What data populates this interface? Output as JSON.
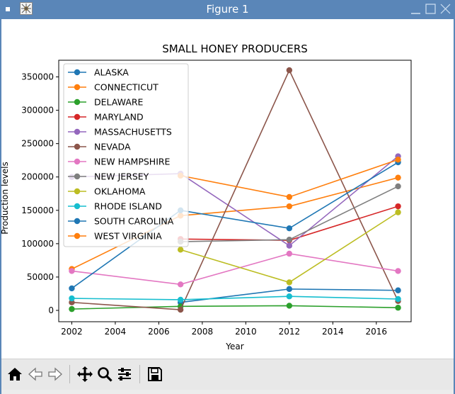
{
  "window": {
    "title": "Figure 1"
  },
  "colors": {
    "titlebar": "#5a86b8"
  },
  "icons": [
    "app-icon",
    "minimize-icon",
    "maximize-icon",
    "close-icon",
    "home-icon",
    "back-icon",
    "forward-icon",
    "pan-icon",
    "zoom-icon",
    "configure-icon",
    "save-icon"
  ],
  "chart_data": {
    "type": "line",
    "title": "SMALL HONEY PRODUCERS",
    "xlabel": "Year",
    "ylabel": "Production levels",
    "xlim": [
      2001.4,
      2017.6
    ],
    "ylim": [
      -17000,
      375000
    ],
    "xticks": [
      2002,
      2004,
      2006,
      2008,
      2010,
      2012,
      2014,
      2016
    ],
    "yticks": [
      0,
      50000,
      100000,
      150000,
      200000,
      250000,
      300000,
      350000
    ],
    "grid": false,
    "legend_position": "upper-left",
    "x": [
      2002,
      2007,
      2012,
      2017
    ],
    "series": [
      {
        "name": "ALASKA",
        "color": "#1f77b4",
        "values": [
          null,
          12000,
          32000,
          30000
        ]
      },
      {
        "name": "CONNECTICUT",
        "color": "#ff7f0e",
        "values": [
          62000,
          142000,
          156000,
          199000
        ]
      },
      {
        "name": "DELAWARE",
        "color": "#2ca02c",
        "values": [
          2000,
          6000,
          7000,
          4000
        ]
      },
      {
        "name": "MARYLAND",
        "color": "#d62728",
        "values": [
          null,
          107000,
          105000,
          156000
        ]
      },
      {
        "name": "MASSACHUSETTS",
        "color": "#9467bd",
        "values": [
          200000,
          205000,
          97000,
          231000
        ]
      },
      {
        "name": "NEVADA",
        "color": "#8c564b",
        "values": [
          12000,
          1000,
          360000,
          14000
        ]
      },
      {
        "name": "NEW HAMPSHIRE",
        "color": "#e377c2",
        "values": [
          59000,
          39000,
          85000,
          59000
        ]
      },
      {
        "name": "NEW JERSEY",
        "color": "#7f7f7f",
        "values": [
          null,
          103000,
          106000,
          186000
        ]
      },
      {
        "name": "OKLAHOMA",
        "color": "#bcbd22",
        "values": [
          null,
          91000,
          42000,
          147000
        ]
      },
      {
        "name": "RHODE ISLAND",
        "color": "#17becf",
        "values": [
          18000,
          16000,
          21000,
          17000
        ]
      },
      {
        "name": "SOUTH CAROLINA",
        "color": "#1f77b4",
        "values": [
          33000,
          150000,
          123000,
          222000
        ]
      },
      {
        "name": "WEST VIRGINIA",
        "color": "#ff7f0e",
        "values": [
          null,
          202000,
          170000,
          226000
        ]
      }
    ]
  }
}
